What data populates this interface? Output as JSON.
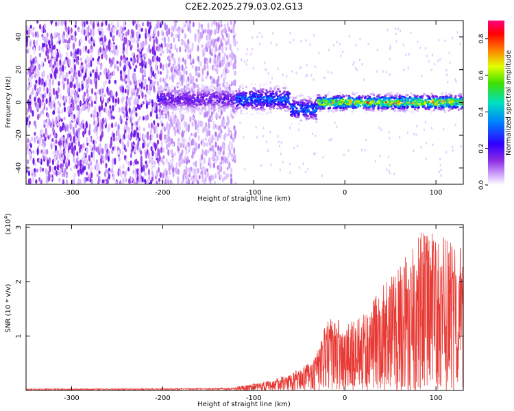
{
  "title": "C2E2.2025.279.03.02.G13",
  "colors": {
    "snr_line": "#e83a34",
    "background": "#ffffff",
    "axis": "#000000"
  },
  "chart_data": [
    {
      "type": "heatmap",
      "name": "spectrogram",
      "xlabel": "Height of straight line (km)",
      "ylabel": "Frequency (Hz)",
      "xlim": [
        -350,
        130
      ],
      "ylim": [
        -50,
        50
      ],
      "xticks": [
        -300,
        -200,
        -100,
        0,
        100
      ],
      "yticks": [
        -40,
        -20,
        0,
        20,
        40
      ],
      "colorbar": {
        "label": "Normalized spectral amplitude",
        "range": [
          0.0,
          0.9
        ],
        "ticks": [
          0.0,
          0.2,
          0.4,
          0.6,
          0.8
        ],
        "tick_labels": [
          "0.0",
          "0.2",
          "0.4",
          "0.6",
          "0.8"
        ]
      },
      "regions": [
        {
          "x_range": [
            -350,
            -200
          ],
          "description": "broadband noise, amplitude 0.05-0.15"
        },
        {
          "x_range": [
            -200,
            -120
          ],
          "description": "broadband noise, amplitude ~0.05"
        },
        {
          "x_range": [
            -200,
            -30
          ],
          "freq_center": 2,
          "freq_width": 8,
          "amplitude": 0.25
        },
        {
          "x_range": [
            -30,
            130
          ],
          "freq_center": 0,
          "freq_width": 5,
          "amplitude": 0.7
        }
      ]
    },
    {
      "type": "line",
      "name": "snr",
      "xlabel": "Height of straight line (km)",
      "ylabel": "SNR (10 * v/v)",
      "scale_label": "(x10",
      "scale_exponent": "4",
      "scale_close": ")",
      "xlim": [
        -350,
        130
      ],
      "ylim": [
        0,
        3.05
      ],
      "xticks": [
        -300,
        -200,
        -100,
        0,
        100
      ],
      "yticks": [
        1,
        2,
        3
      ],
      "envelope": {
        "x": [
          -350,
          -200,
          -150,
          -120,
          -100,
          -80,
          -60,
          -40,
          -30,
          -20,
          -10,
          0,
          20,
          40,
          60,
          80,
          100,
          130
        ],
        "y_max": [
          0.03,
          0.04,
          0.05,
          0.07,
          0.12,
          0.2,
          0.3,
          0.5,
          0.75,
          1.3,
          1.35,
          1.2,
          1.4,
          1.9,
          2.3,
          3.0,
          2.9,
          2.6
        ]
      }
    }
  ]
}
